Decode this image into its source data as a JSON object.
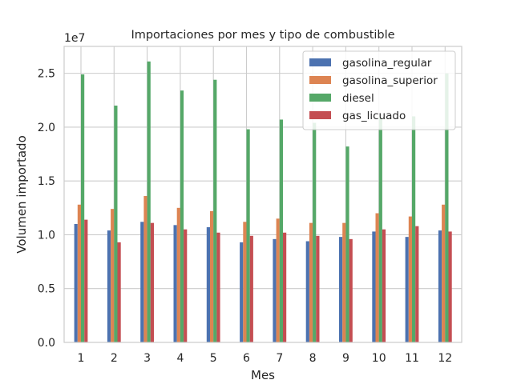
{
  "chart_data": {
    "type": "bar",
    "title": "Importaciones por mes y tipo de combustible",
    "xlabel": "Mes",
    "ylabel": "Volumen importado",
    "y_multiplier_label": "1e7",
    "categories": [
      "1",
      "2",
      "3",
      "4",
      "5",
      "6",
      "7",
      "8",
      "9",
      "10",
      "11",
      "12"
    ],
    "ylim": [
      0,
      27500000
    ],
    "yticks": [
      0,
      5000000,
      10000000,
      15000000,
      20000000,
      25000000
    ],
    "ytick_labels": [
      "0.0",
      "0.5",
      "1.0",
      "1.5",
      "2.0",
      "2.5"
    ],
    "grid": true,
    "legend_position": "top-right",
    "series": [
      {
        "name": "gasolina_regular",
        "color": "#4c72b0",
        "values": [
          11000000,
          10400000,
          11200000,
          10900000,
          10700000,
          9300000,
          9600000,
          9400000,
          9800000,
          10300000,
          9800000,
          10400000
        ]
      },
      {
        "name": "gasolina_superior",
        "color": "#dd8452",
        "values": [
          12800000,
          12400000,
          13600000,
          12500000,
          12200000,
          11200000,
          11500000,
          11100000,
          11100000,
          12000000,
          11700000,
          12800000
        ]
      },
      {
        "name": "diesel",
        "color": "#55a868",
        "values": [
          24900000,
          22000000,
          26100000,
          23400000,
          24400000,
          19800000,
          20700000,
          20400000,
          18200000,
          20900000,
          21000000,
          25000000
        ]
      },
      {
        "name": "gas_licuado",
        "color": "#c44e52",
        "values": [
          11400000,
          9300000,
          11100000,
          10500000,
          10200000,
          9900000,
          10200000,
          9900000,
          9600000,
          10500000,
          10800000,
          10300000
        ]
      }
    ]
  }
}
